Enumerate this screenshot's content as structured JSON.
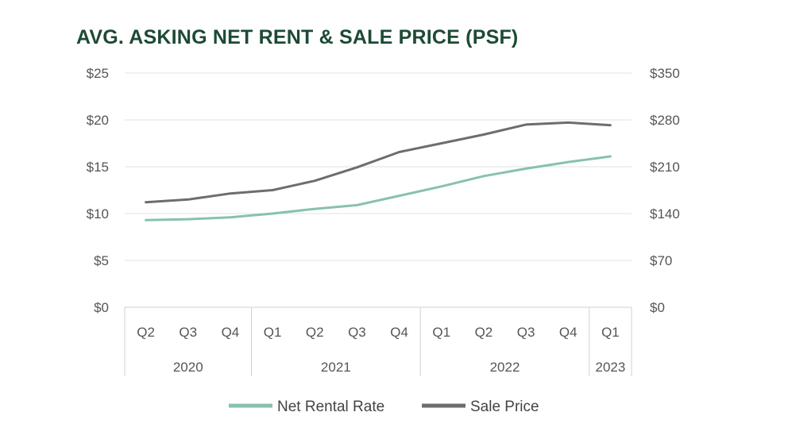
{
  "chart_data": {
    "type": "line",
    "title": "AVG. ASKING NET RENT & SALE PRICE (PSF)",
    "categories": [
      "Q2",
      "Q3",
      "Q4",
      "Q1",
      "Q2",
      "Q3",
      "Q4",
      "Q1",
      "Q2",
      "Q3",
      "Q4",
      "Q1"
    ],
    "year_groups": [
      {
        "label": "2020",
        "count": 3
      },
      {
        "label": "2021",
        "count": 4
      },
      {
        "label": "2022",
        "count": 4
      },
      {
        "label": "2023",
        "count": 1
      }
    ],
    "y_left": {
      "ticks": [
        0,
        5,
        10,
        15,
        20,
        25
      ],
      "tick_labels": [
        "$0",
        "$5",
        "$10",
        "$15",
        "$20",
        "$25"
      ],
      "lim": [
        0,
        25
      ]
    },
    "y_right": {
      "ticks": [
        0,
        70,
        140,
        210,
        280,
        350
      ],
      "tick_labels": [
        "$0",
        "$70",
        "$140",
        "$210",
        "$280",
        "$350"
      ],
      "lim": [
        0,
        350
      ]
    },
    "series": [
      {
        "name": "Net Rental Rate",
        "axis": "left",
        "color": "#88c1ad",
        "values": [
          9.3,
          9.4,
          9.6,
          10.0,
          10.5,
          10.9,
          11.9,
          12.9,
          14.0,
          14.8,
          15.5,
          16.1
        ]
      },
      {
        "name": "Sale Price",
        "axis": "right",
        "color": "#6d6d6f",
        "values": [
          157,
          161,
          170,
          175,
          189,
          209,
          232,
          245,
          258,
          273,
          276,
          272
        ]
      }
    ],
    "grid": true,
    "legend_position": "bottom"
  }
}
